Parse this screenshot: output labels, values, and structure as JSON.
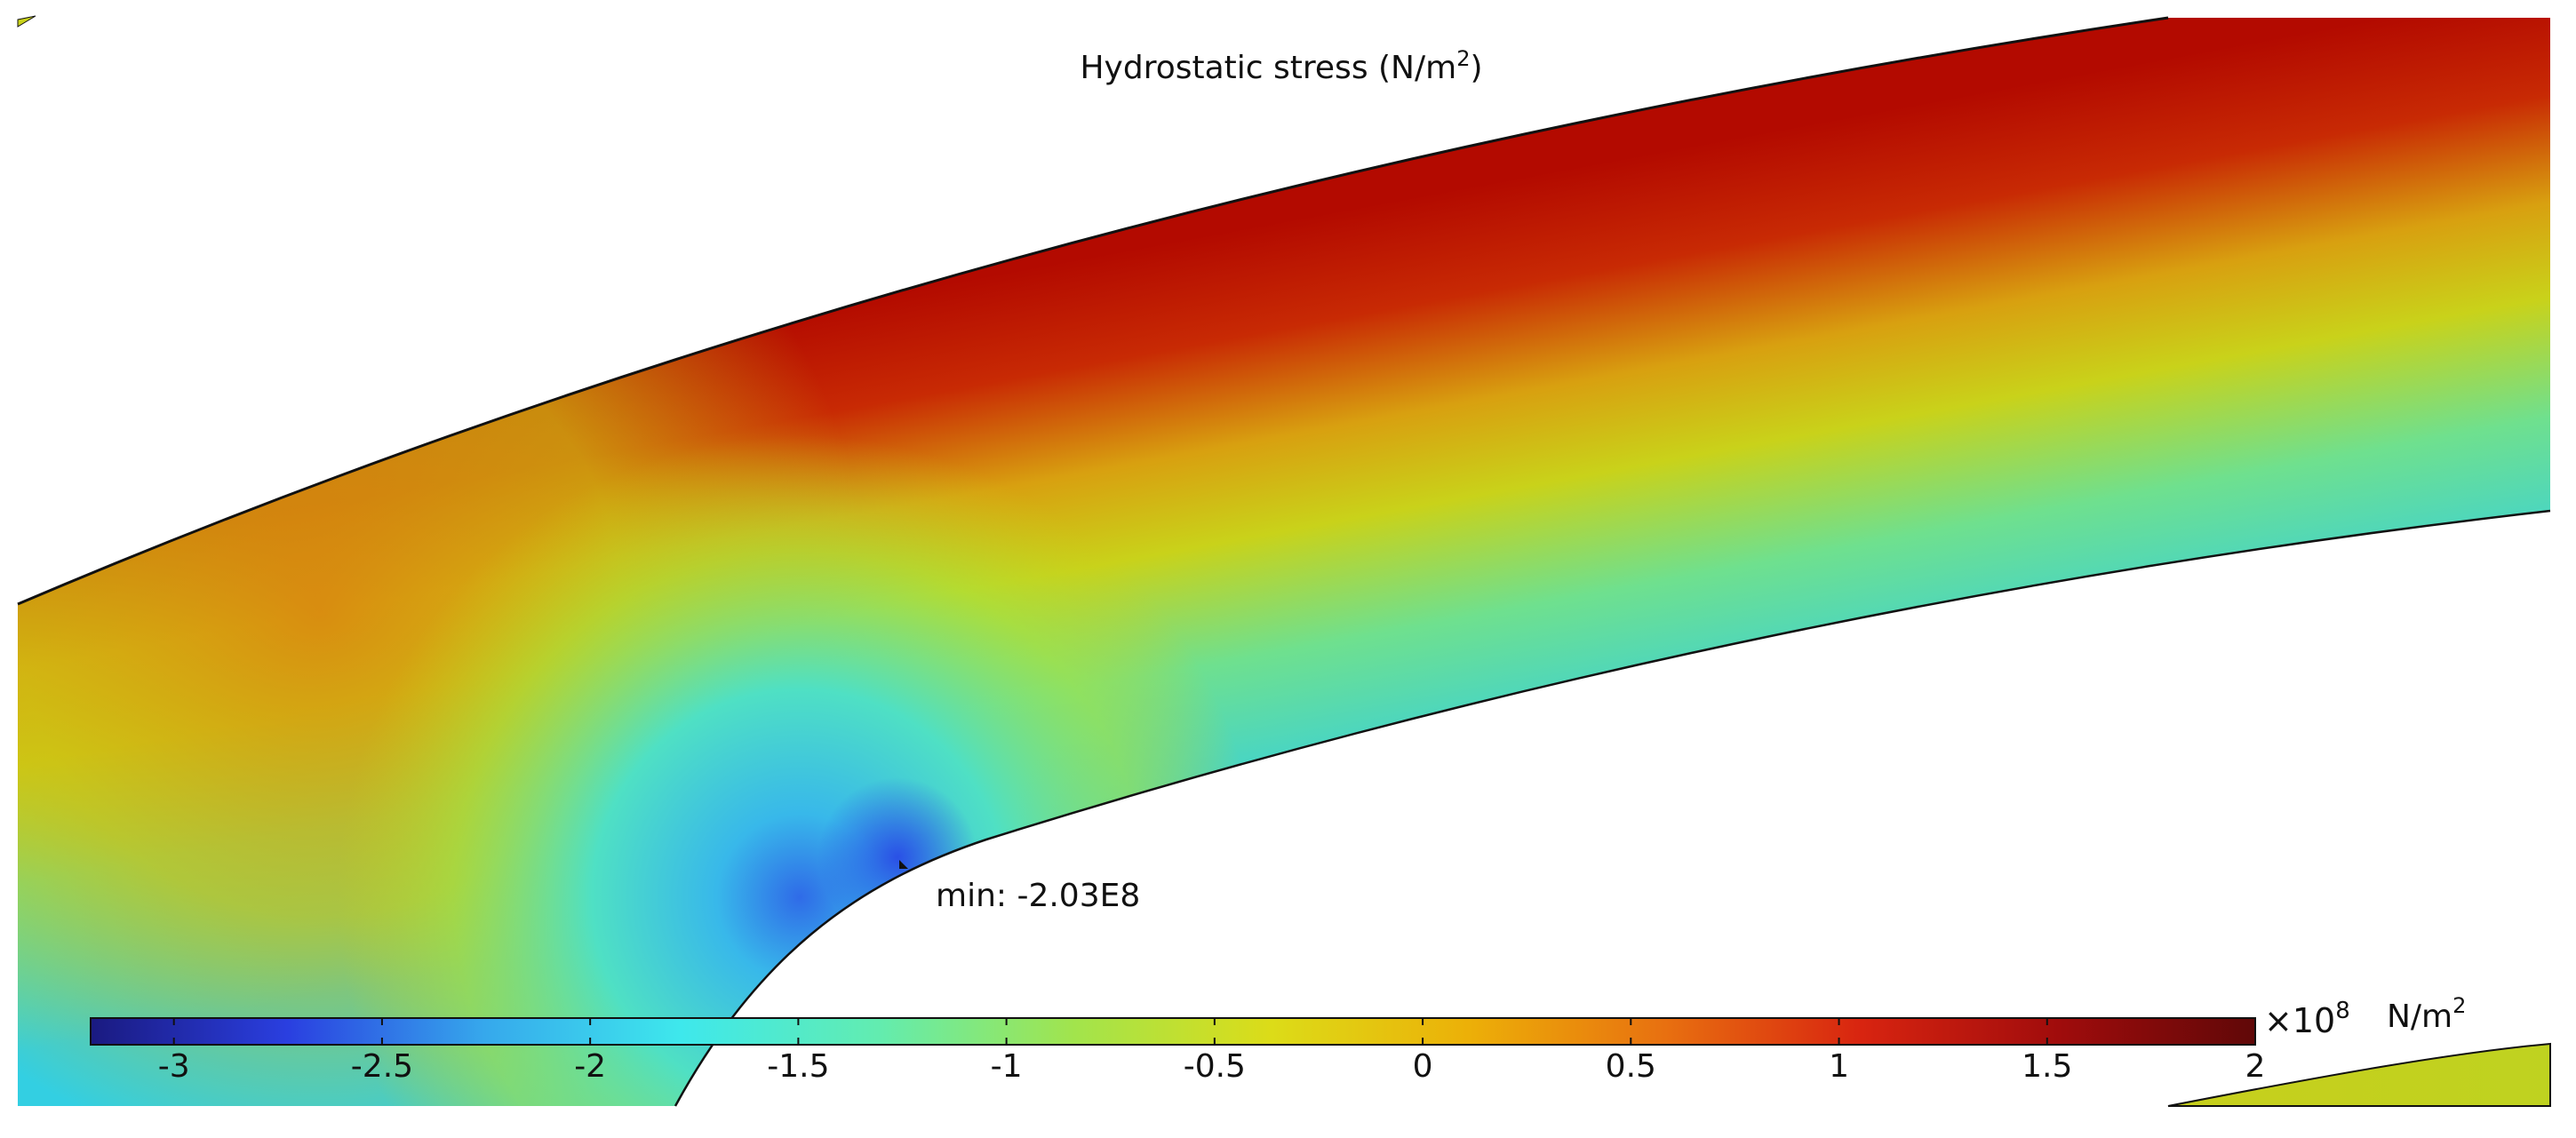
{
  "plot": {
    "title_main": "Hydrostatic stress (N/m",
    "title_sup": "2",
    "title_end": ")",
    "min_label": "min: -2.03E8",
    "colors": {
      "outer_edge": "#b30000",
      "mid": "#c9d21a",
      "inner_edge": "#35cfe0",
      "left_region": "#cfbd12",
      "min_spot": "#2f5be8",
      "outline": "#111111"
    }
  },
  "colorbar": {
    "ticks": [
      "-3",
      "-2.5",
      "-2",
      "-1.5",
      "-1",
      "-0.5",
      "0",
      "0.5",
      "1",
      "1.5",
      "2"
    ],
    "tick_values": [
      -3,
      -2.5,
      -2,
      -1.5,
      -1,
      -0.5,
      0,
      0.5,
      1,
      1.5,
      2
    ],
    "range": [
      -3.2,
      2
    ],
    "multiplier_base": "×10",
    "multiplier_exp": "8",
    "unit_base": "N/m",
    "unit_exp": "2",
    "colormap": [
      "#1a1a80",
      "#2a3fe0",
      "#36a8ec",
      "#3ee8ec",
      "#62ecb0",
      "#a2e44c",
      "#dcdc18",
      "#ecb008",
      "#e87010",
      "#d82410",
      "#a00c0c",
      "#600808"
    ]
  }
}
